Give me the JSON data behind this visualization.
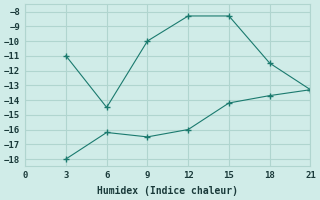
{
  "xlabel": "Humidex (Indice chaleur)",
  "line1_x": [
    3,
    6,
    9,
    12,
    15,
    18,
    21
  ],
  "line1_y": [
    -11,
    -14.5,
    -10,
    -8.3,
    -8.3,
    -11.5,
    -13.3
  ],
  "line2_x": [
    3,
    6,
    9,
    12,
    15,
    18,
    21
  ],
  "line2_y": [
    -18,
    -16.2,
    -16.5,
    -16.0,
    -14.2,
    -13.7,
    -13.3
  ],
  "line_color": "#1a7a6e",
  "bg_color": "#d0ece8",
  "grid_color": "#b0d5cf",
  "xlim": [
    0,
    21
  ],
  "ylim": [
    -18.5,
    -7.5
  ],
  "xticks": [
    0,
    3,
    6,
    9,
    12,
    15,
    18,
    21
  ],
  "yticks": [
    -18,
    -17,
    -16,
    -15,
    -14,
    -13,
    -12,
    -11,
    -10,
    -9,
    -8
  ]
}
